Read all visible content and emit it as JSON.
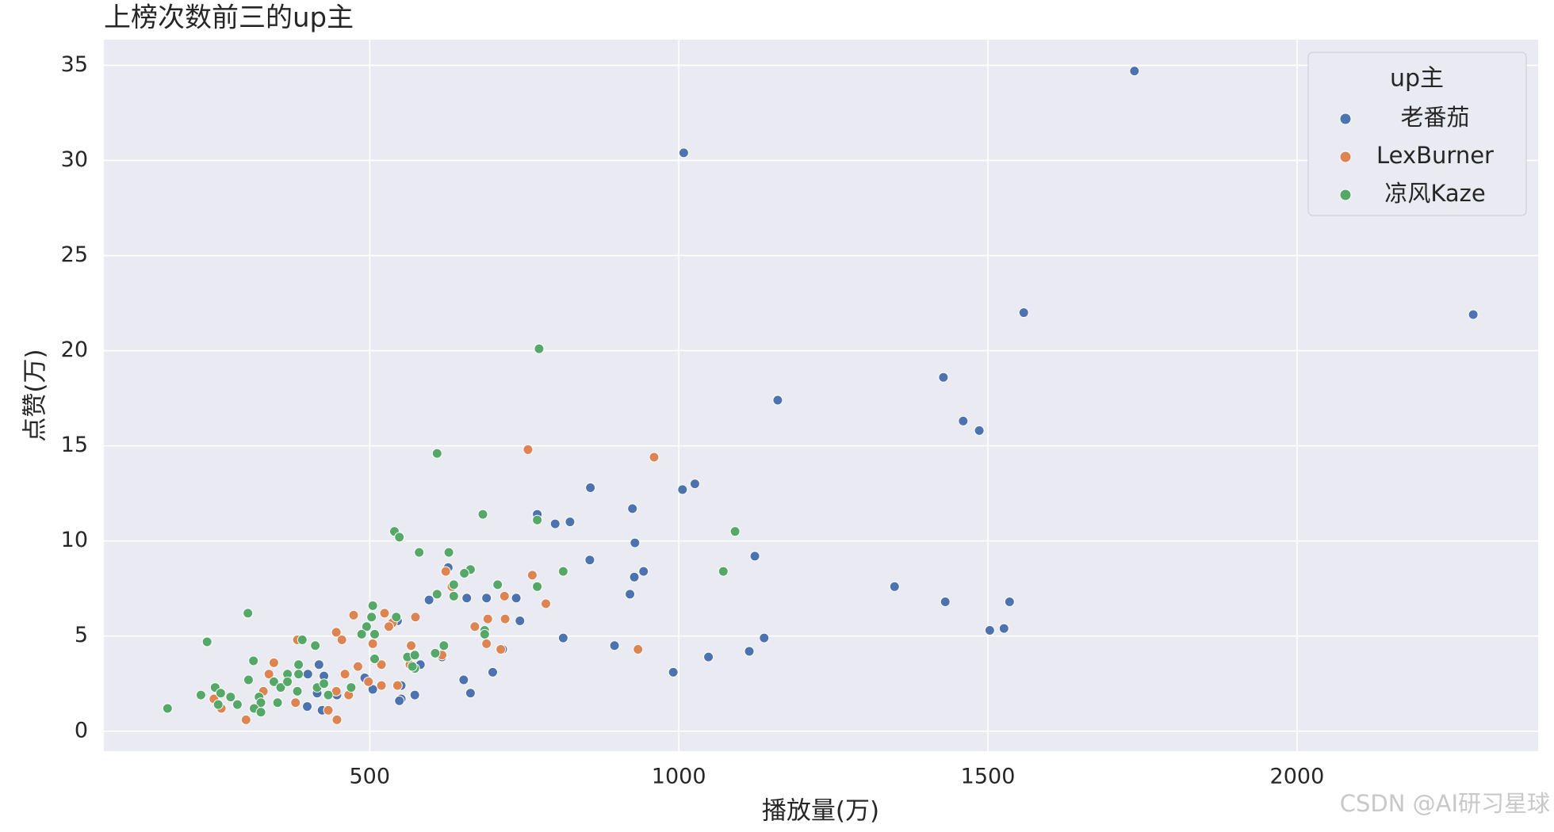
{
  "chart_data": {
    "type": "scatter",
    "title": "上榜次数前三的up主",
    "x_label": "播放量(万)",
    "y_label": "点赞(万)",
    "legend_title": "up主",
    "legend_position": "upper right",
    "grid": true,
    "watermark": "CSDN @AI研习星球",
    "xlim": [
      70,
      2390
    ],
    "ylim": [
      -1.05,
      36.35
    ],
    "xticks": [
      500,
      1000,
      1500,
      2000
    ],
    "yticks": [
      0,
      5,
      10,
      15,
      20,
      25,
      30,
      35
    ],
    "series": [
      {
        "name": "老番茄",
        "color": "#4c72b0",
        "x": [
          1737,
          1008,
          1558,
          2285,
          1428,
          1160,
          1460,
          1486,
          857,
          1006,
          1026,
          925,
          824,
          800,
          771,
          929,
          856,
          1123,
          943,
          928,
          921,
          1349,
          1431,
          1535,
          1526,
          1503,
          737,
          689,
          657,
          596,
          743,
          813,
          1138,
          896,
          715,
          1048,
          1114,
          991,
          699,
          652,
          663,
          573,
          551,
          617,
          582,
          627,
          548,
          505,
          492,
          551,
          418,
          426,
          400,
          447,
          399,
          423,
          415,
          545
        ],
        "y": [
          34.7,
          30.4,
          22.0,
          21.9,
          18.6,
          17.4,
          16.3,
          15.8,
          12.8,
          12.7,
          13.0,
          11.7,
          11.0,
          10.9,
          11.4,
          9.9,
          9.0,
          9.2,
          8.4,
          8.1,
          7.2,
          7.6,
          6.8,
          6.8,
          5.4,
          5.3,
          7.0,
          7.0,
          7.0,
          6.9,
          5.8,
          4.9,
          4.9,
          4.5,
          4.3,
          3.9,
          4.2,
          3.1,
          3.1,
          2.7,
          2.0,
          1.9,
          1.7,
          3.9,
          3.5,
          8.6,
          1.6,
          2.2,
          2.8,
          2.4,
          3.5,
          2.9,
          3.0,
          1.9,
          1.3,
          1.1,
          2.0,
          5.8
        ]
      },
      {
        "name": "LexBurner",
        "color": "#dd8452",
        "x": [
          756,
          960,
          763,
          785,
          718,
          719,
          691,
          670,
          689,
          712,
          934,
          623,
          633,
          574,
          524,
          474,
          537,
          531,
          505,
          567,
          617,
          446,
          455,
          383,
          345,
          337,
          460,
          519,
          481,
          519,
          498,
          545,
          466,
          446,
          380,
          328,
          248,
          260,
          300,
          433,
          447,
          565
        ],
        "y": [
          14.8,
          14.4,
          8.2,
          6.7,
          7.1,
          5.9,
          5.9,
          5.5,
          4.6,
          4.3,
          4.3,
          8.4,
          7.6,
          6.0,
          6.2,
          6.1,
          5.7,
          5.5,
          4.6,
          4.5,
          4.0,
          5.2,
          4.8,
          4.8,
          3.6,
          3.0,
          3.0,
          3.5,
          3.4,
          2.4,
          2.6,
          2.4,
          1.9,
          2.1,
          1.5,
          2.1,
          1.7,
          1.2,
          0.6,
          1.1,
          0.6,
          3.5
        ]
      },
      {
        "name": "凉风Kaze",
        "color": "#55a868",
        "x": [
          774,
          609,
          683,
          771,
          1091,
          540,
          548,
          580,
          628,
          813,
          1072,
          663,
          653,
          636,
          771,
          707,
          609,
          636,
          303,
          505,
          543,
          503,
          495,
          508,
          487,
          686,
          686,
          237,
          391,
          412,
          620,
          606,
          561,
          573,
          508,
          573,
          569,
          312,
          385,
          304,
          367,
          385,
          345,
          356,
          367,
          250,
          259,
          227,
          275,
          383,
          415,
          426,
          470,
          433,
          321,
          324,
          313,
          351,
          255,
          286,
          173,
          324
        ],
        "y": [
          20.1,
          14.6,
          11.4,
          11.1,
          10.5,
          10.5,
          10.2,
          9.4,
          9.4,
          8.4,
          8.4,
          8.5,
          8.3,
          7.7,
          7.6,
          7.7,
          7.2,
          7.1,
          6.2,
          6.6,
          6.0,
          6.0,
          5.5,
          5.1,
          5.1,
          5.3,
          5.1,
          4.7,
          4.8,
          4.5,
          4.5,
          4.1,
          3.9,
          4.0,
          3.8,
          3.3,
          3.4,
          3.7,
          3.5,
          2.7,
          3.0,
          3.0,
          2.6,
          2.3,
          2.6,
          2.3,
          2.0,
          1.9,
          1.8,
          2.1,
          2.3,
          2.5,
          2.3,
          1.9,
          1.8,
          1.5,
          1.2,
          1.5,
          1.4,
          1.4,
          1.2,
          1.0
        ]
      }
    ]
  }
}
